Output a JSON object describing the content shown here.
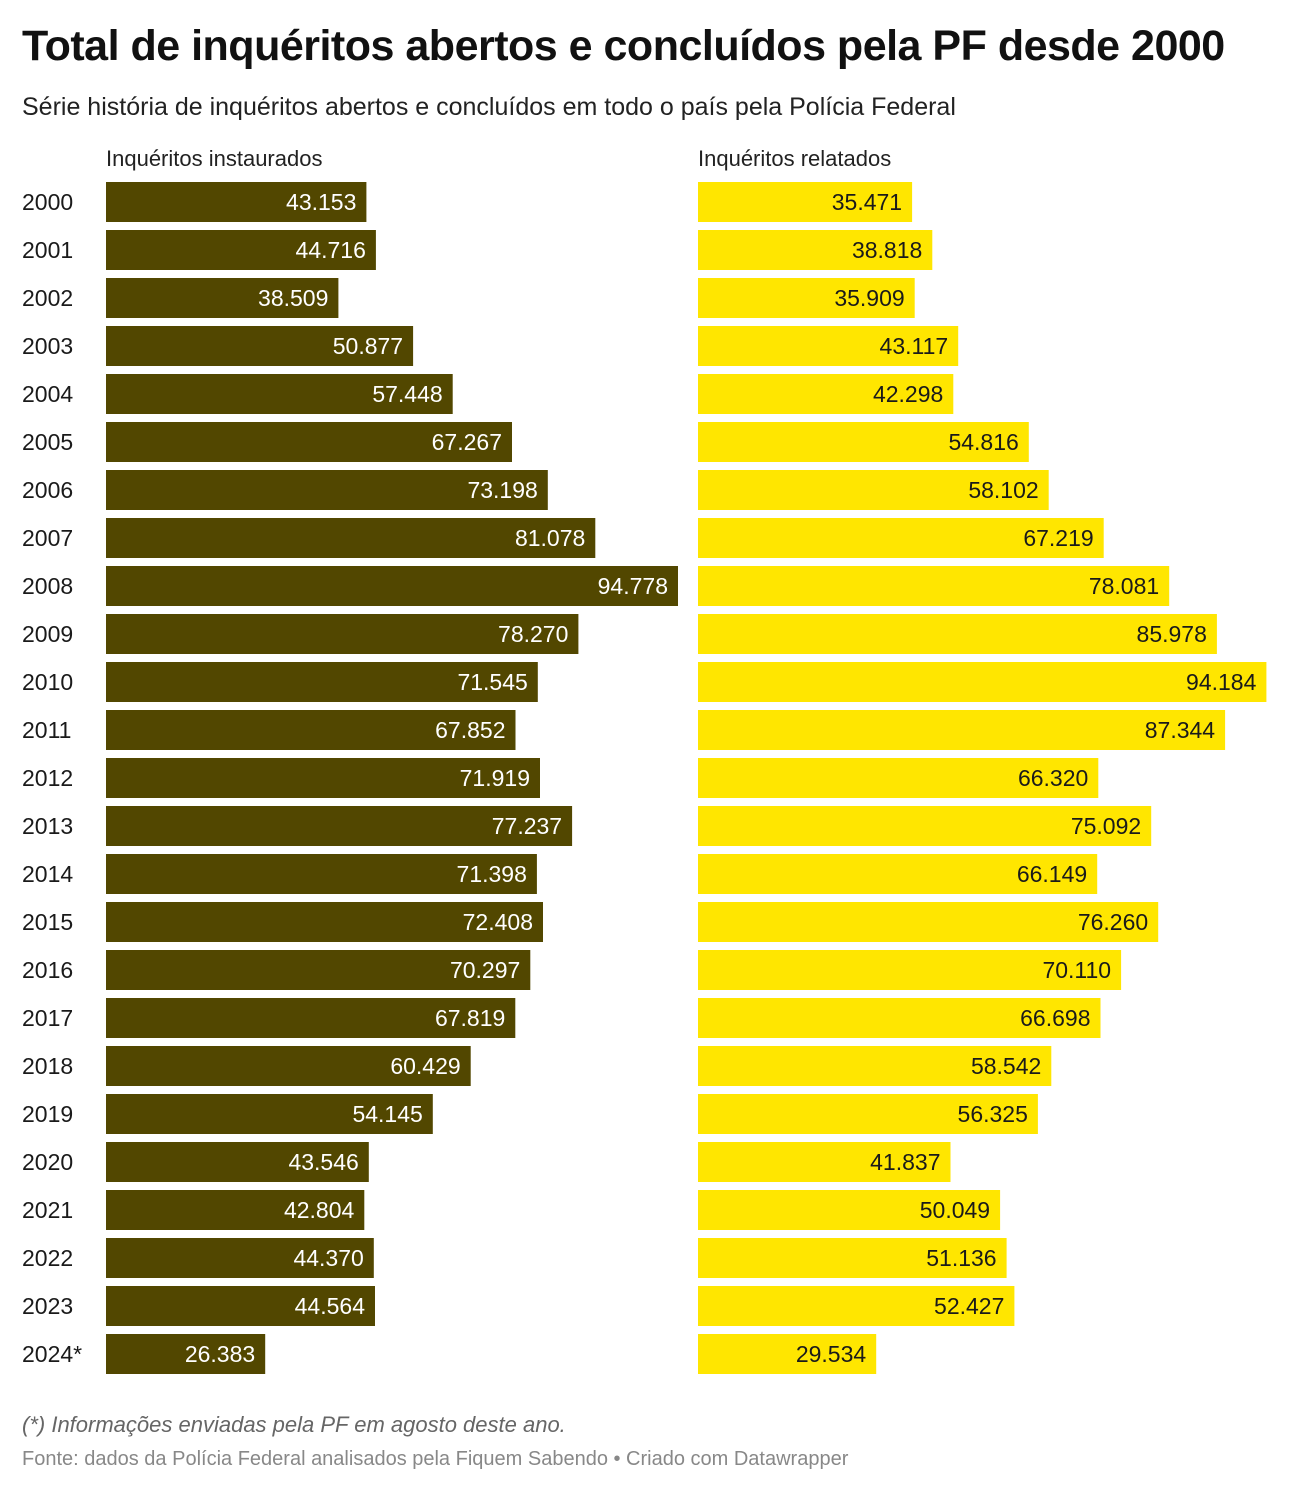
{
  "title": "Total de inquéritos abertos e concluídos pela PF desde 2000",
  "subtitle": "Série história de inquéritos abertos e concluídos em todo o país pela Polícia Federal",
  "footnote": "(*) Informações enviadas pela PF em agosto deste ano.",
  "source": "Fonte: dados da Polícia Federal analisados pela Fiquem Sabendo • Criado com Datawrapper",
  "chart_data": {
    "type": "bar",
    "orientation": "horizontal",
    "title": "Total de inquéritos abertos e concluídos pela PF desde 2000",
    "categories": [
      "2000",
      "2001",
      "2002",
      "2003",
      "2004",
      "2005",
      "2006",
      "2007",
      "2008",
      "2009",
      "2010",
      "2011",
      "2012",
      "2013",
      "2014",
      "2015",
      "2016",
      "2017",
      "2018",
      "2019",
      "2020",
      "2021",
      "2022",
      "2023",
      "2024*"
    ],
    "series": [
      {
        "name": "Inquéritos instaurados",
        "color": "#524700",
        "label_color": "#ffffff",
        "values": [
          43153,
          44716,
          38509,
          50877,
          57448,
          67267,
          73198,
          81078,
          94778,
          78270,
          71545,
          67852,
          71919,
          77237,
          71398,
          72408,
          70297,
          67819,
          60429,
          54145,
          43546,
          42804,
          44370,
          44564,
          26383
        ],
        "labels": [
          "43.153",
          "44.716",
          "38.509",
          "50.877",
          "57.448",
          "67.267",
          "73.198",
          "81.078",
          "94.778",
          "78.270",
          "71.545",
          "67.852",
          "71.919",
          "77.237",
          "71.398",
          "72.408",
          "70.297",
          "67.819",
          "60.429",
          "54.145",
          "43.546",
          "42.804",
          "44.370",
          "44.564",
          "26.383"
        ]
      },
      {
        "name": "Inquéritos relatados",
        "color": "#ffe600",
        "label_color": "#1a1a1a",
        "values": [
          35471,
          38818,
          35909,
          43117,
          42298,
          54816,
          58102,
          67219,
          78081,
          85978,
          94184,
          87344,
          66320,
          75092,
          66149,
          76260,
          70110,
          66698,
          58542,
          56325,
          41837,
          50049,
          51136,
          52427,
          29534
        ],
        "labels": [
          "35.471",
          "38.818",
          "35.909",
          "43.117",
          "42.298",
          "54.816",
          "58.102",
          "67.219",
          "78.081",
          "85.978",
          "94.184",
          "87.344",
          "66.320",
          "75.092",
          "66.149",
          "76.260",
          "70.110",
          "66.698",
          "58.542",
          "56.325",
          "41.837",
          "50.049",
          "51.136",
          "52.427",
          "29.534"
        ]
      }
    ],
    "xlim": [
      0,
      94778
    ]
  }
}
